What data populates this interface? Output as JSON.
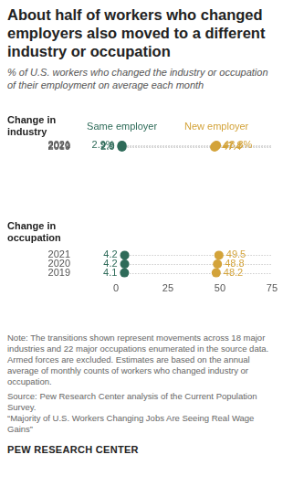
{
  "title": "About half of workers who changed employers also moved to a different industry or occupation",
  "subtitle": "% of U.S. workers who changed the industry or occupation of their employment on average each month",
  "chart_data": [
    {
      "type": "dot",
      "title": "Change in industry",
      "categories": [
        "2021",
        "2020",
        "2019"
      ],
      "series": [
        {
          "name": "Same employer",
          "color": "#2e6b59",
          "values": [
            2.9,
            2.8,
            2.9
          ],
          "value_labels": [
            "2.9%",
            "2.8",
            "2.9"
          ]
        },
        {
          "name": "New employer",
          "color": "#d3a33a",
          "values": [
            48.3,
            47.8,
            47.4
          ],
          "value_labels": [
            "48.3%",
            "47.8",
            "47.4"
          ]
        }
      ],
      "xlim": [
        0,
        75
      ],
      "grid": false,
      "data_labels": true,
      "tick_labels": "y",
      "legend": "top"
    },
    {
      "type": "dot",
      "title": "Change in occupation",
      "categories": [
        "2021",
        "2020",
        "2019"
      ],
      "series": [
        {
          "name": "Same employer",
          "color": "#2e6b59",
          "values": [
            4.2,
            4.2,
            4.1
          ]
        },
        {
          "name": "New employer",
          "color": "#d3a33a",
          "values": [
            49.5,
            48.8,
            48.2
          ]
        }
      ],
      "xlim": [
        0,
        75
      ],
      "xticks": [
        0,
        25,
        50,
        75
      ],
      "grid": false,
      "data_labels": true
    }
  ],
  "note": "Note: The transitions shown represent movements across 18 major industries and 22 major occupations enumerated in the source data. Armed forces are excluded. Estimates are based on the annual average of monthly counts of workers who changed industry or occupation.",
  "source": "Source: Pew Research Center analysis of the Current Population Survey.",
  "report": "“Majority of U.S. Workers Changing Jobs Are Seeing Real Wage Gains”",
  "credit": "PEW RESEARCH CENTER"
}
